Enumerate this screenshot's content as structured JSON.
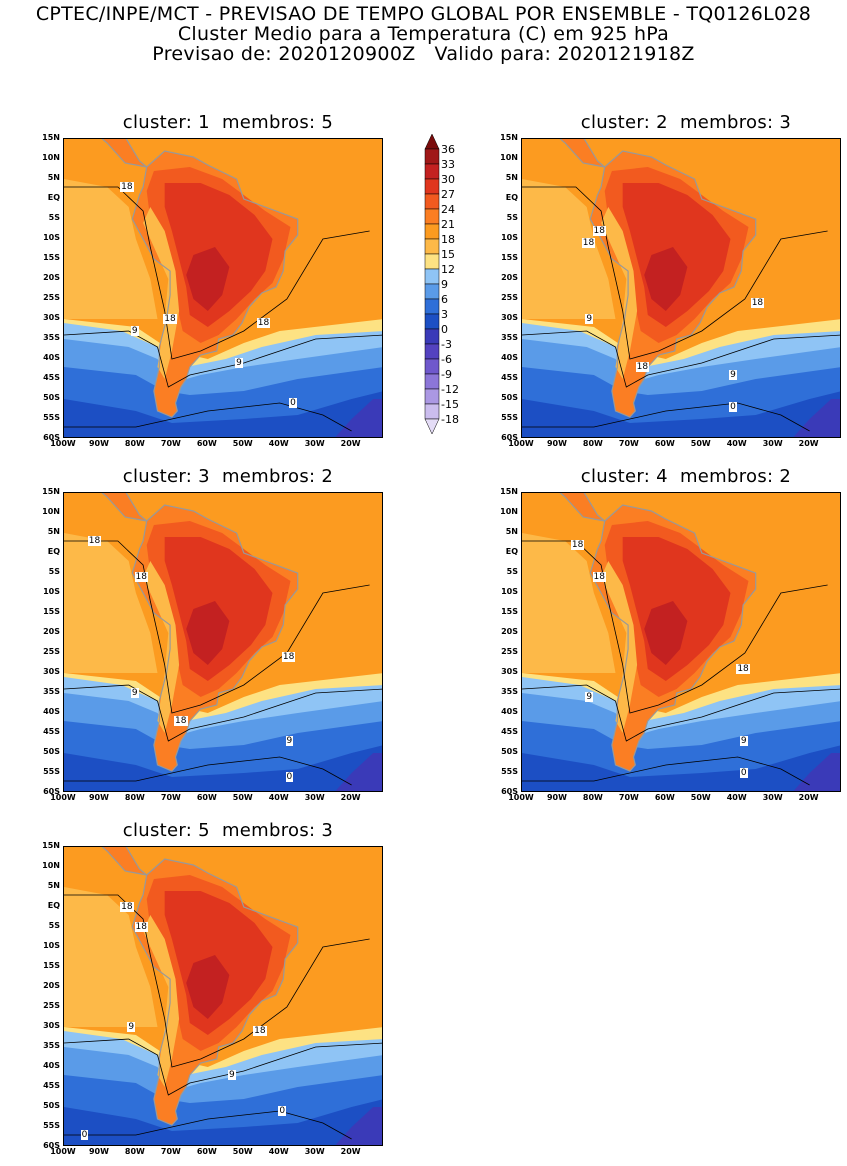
{
  "header": {
    "line1": "CPTEC/INPE/MCT - PREVISAO DE TEMPO GLOBAL POR ENSEMBLE - TQ0126L028",
    "line2": "Cluster Medio para a Temperatura (C) em 925 hPa",
    "line3": "Previsao de: 2020120900Z   Valido para: 2020121918Z"
  },
  "panels": [
    {
      "title": "cluster: 1  membros: 5",
      "contour_labels": [
        {
          "text": "18",
          "lon": -83,
          "lat": 3
        },
        {
          "text": "18",
          "lon": -71,
          "lat": -30
        },
        {
          "text": "18",
          "lon": -45,
          "lat": -31
        },
        {
          "text": "9",
          "lon": -80,
          "lat": -33
        },
        {
          "text": "9",
          "lon": -51,
          "lat": -41
        },
        {
          "text": "0",
          "lon": -36,
          "lat": -51
        }
      ]
    },
    {
      "title": "cluster: 2  membros: 3",
      "contour_labels": [
        {
          "text": "18",
          "lon": -79,
          "lat": -8
        },
        {
          "text": "18",
          "lon": -82,
          "lat": -11
        },
        {
          "text": "18",
          "lon": -35,
          "lat": -26
        },
        {
          "text": "9",
          "lon": -81,
          "lat": -30
        },
        {
          "text": "18",
          "lon": -67,
          "lat": -42
        },
        {
          "text": "9",
          "lon": -41,
          "lat": -44
        },
        {
          "text": "0",
          "lon": -41,
          "lat": -52
        }
      ]
    },
    {
      "title": "cluster: 3  membros: 2",
      "contour_labels": [
        {
          "text": "18",
          "lon": -92,
          "lat": 3
        },
        {
          "text": "18",
          "lon": -79,
          "lat": -6
        },
        {
          "text": "18",
          "lon": -38,
          "lat": -26
        },
        {
          "text": "9",
          "lon": -80,
          "lat": -35
        },
        {
          "text": "18",
          "lon": -68,
          "lat": -42
        },
        {
          "text": "9",
          "lon": -37,
          "lat": -47
        },
        {
          "text": "0",
          "lon": -37,
          "lat": -56
        }
      ]
    },
    {
      "title": "cluster: 4  membros: 2",
      "contour_labels": [
        {
          "text": "18",
          "lon": -85,
          "lat": 2
        },
        {
          "text": "18",
          "lon": -79,
          "lat": -6
        },
        {
          "text": "18",
          "lon": -39,
          "lat": -29
        },
        {
          "text": "9",
          "lon": -81,
          "lat": -36
        },
        {
          "text": "9",
          "lon": -38,
          "lat": -47
        },
        {
          "text": "0",
          "lon": -38,
          "lat": -55
        }
      ]
    },
    {
      "title": "cluster: 5  membros: 3",
      "contour_labels": [
        {
          "text": "18",
          "lon": -83,
          "lat": 0
        },
        {
          "text": "18",
          "lon": -79,
          "lat": -5
        },
        {
          "text": "18",
          "lon": -46,
          "lat": -31
        },
        {
          "text": "9",
          "lon": -81,
          "lat": -30
        },
        {
          "text": "9",
          "lon": -53,
          "lat": -42
        },
        {
          "text": "0",
          "lon": -39,
          "lat": -51
        },
        {
          "text": "0",
          "lon": -94,
          "lat": -57
        }
      ]
    }
  ],
  "lat_ticks": [
    "15N",
    "10N",
    "5N",
    "EQ",
    "5S",
    "10S",
    "15S",
    "20S",
    "25S",
    "30S",
    "35S",
    "40S",
    "45S",
    "50S",
    "55S",
    "60S"
  ],
  "lon_ticks": [
    "100W",
    "90W",
    "80W",
    "70W",
    "60W",
    "50W",
    "40W",
    "30W",
    "20W"
  ],
  "colorbar": {
    "labels": [
      "36",
      "33",
      "30",
      "27",
      "24",
      "21",
      "18",
      "15",
      "12",
      "9",
      "6",
      "3",
      "0",
      "-3",
      "-6",
      "-9",
      "-12",
      "-15",
      "-18"
    ],
    "colors": [
      "#7a0c0c",
      "#a01818",
      "#c32121",
      "#e0361e",
      "#f25a1f",
      "#fb7e23",
      "#fc9b20",
      "#fdb948",
      "#fde283",
      "#8fc4f5",
      "#5a9be8",
      "#2f6fd8",
      "#1c4fc4",
      "#3a3ab8",
      "#5442c0",
      "#6f58cc",
      "#8c76d8",
      "#ab98e3",
      "#cbbdee",
      "#e4dcf6"
    ]
  }
}
